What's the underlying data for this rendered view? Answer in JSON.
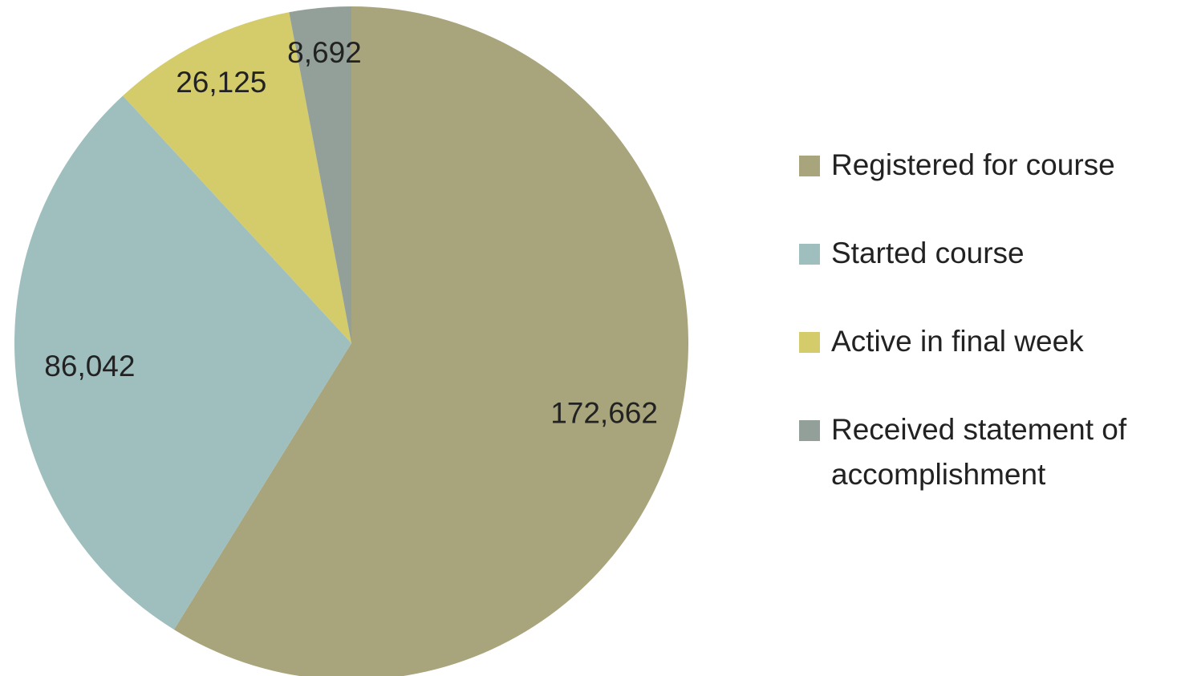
{
  "chart_data": {
    "type": "pie",
    "categories": [
      "Registered for course",
      "Started course",
      "Active in final week",
      "Received statement of accomplishment"
    ],
    "values": [
      172662,
      86042,
      26125,
      8692
    ],
    "value_labels": [
      "172,662",
      "86,042",
      "26,125",
      "8,692"
    ],
    "colors": [
      "#a8a47c",
      "#9fbfbf",
      "#d4cb6a",
      "#93a09a"
    ],
    "legend": "right"
  }
}
